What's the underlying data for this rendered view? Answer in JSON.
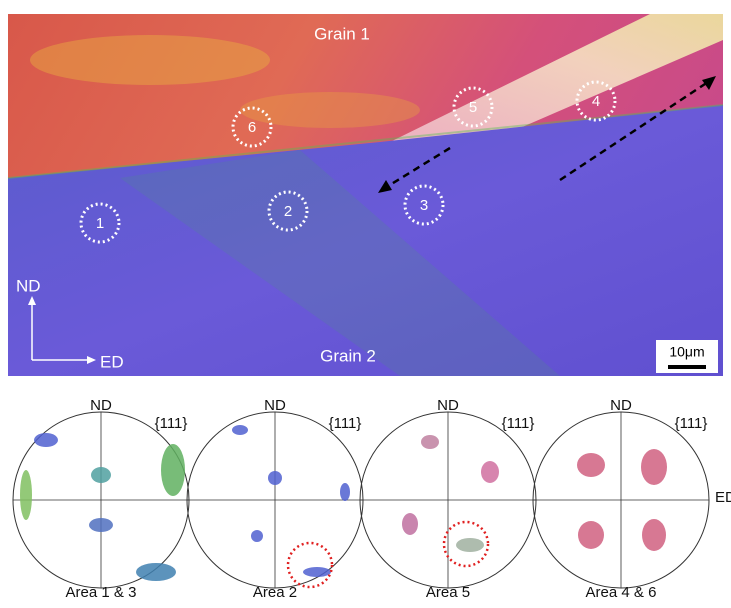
{
  "map": {
    "grain_1": "Grain 1",
    "grain_2": "Grain 2",
    "axis_nd": "ND",
    "axis_ed": "ED",
    "scale_bar": "10μm",
    "areas": [
      "1",
      "2",
      "3",
      "4",
      "5",
      "6"
    ]
  },
  "pole_figures": [
    {
      "top": "ND",
      "plane": "{111}",
      "caption": "Area 1 & 3"
    },
    {
      "top": "ND",
      "plane": "{111}",
      "caption": "Area 2"
    },
    {
      "top": "ND",
      "plane": "{111}",
      "caption": "Area 5"
    },
    {
      "top": "ND",
      "plane": "{111}",
      "caption": "Area 4 & 6",
      "right": "ED"
    }
  ]
}
